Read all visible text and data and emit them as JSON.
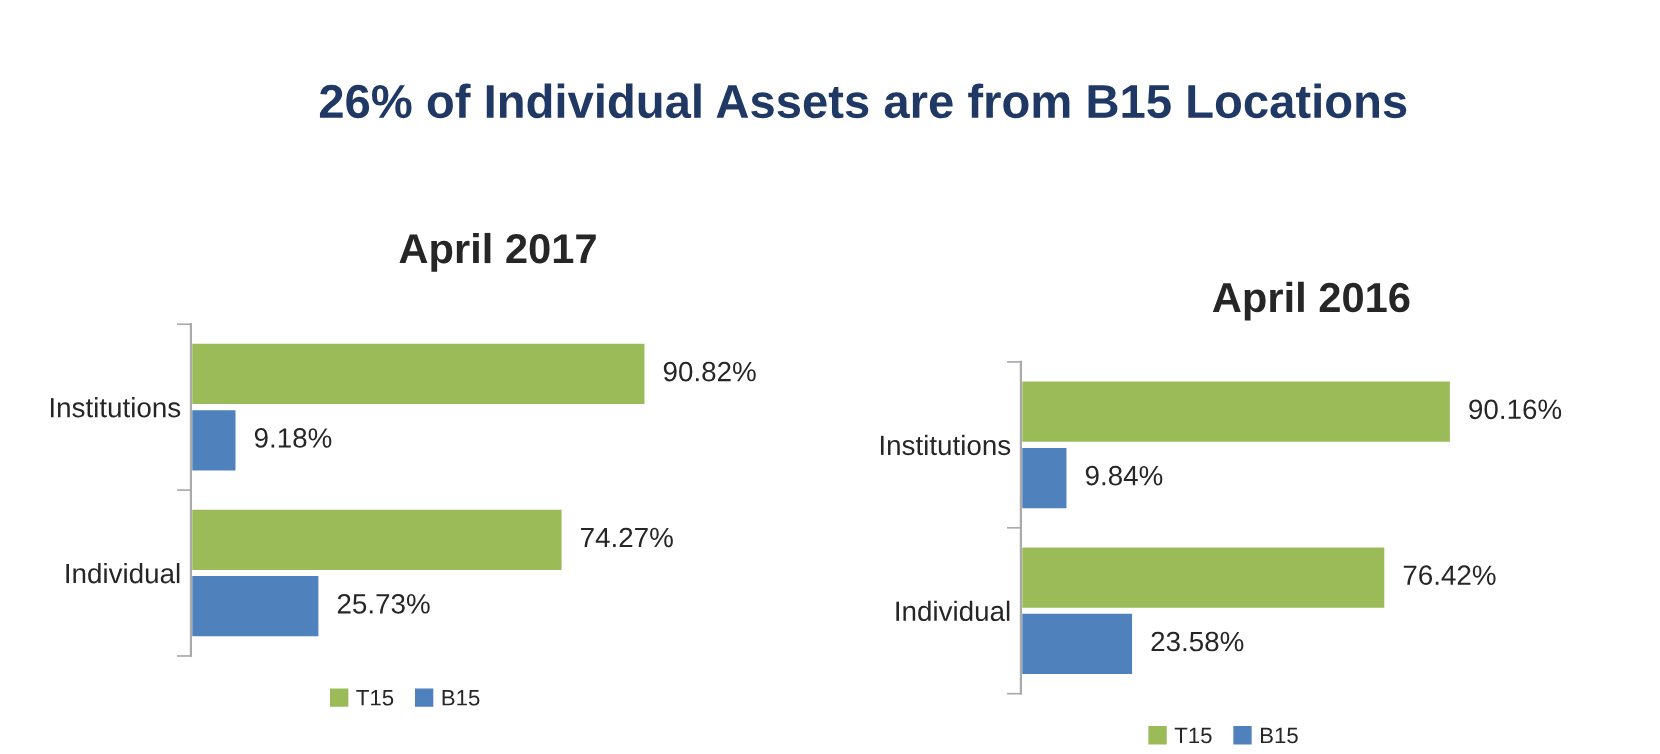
{
  "chart_data": [
    {
      "type": "bar",
      "orientation": "horizontal",
      "title": "April 2017",
      "annotations": [
        "26% of Individual Assets are from B15 Locations"
      ],
      "categories": [
        "Institutions",
        "Individual"
      ],
      "series": [
        {
          "name": "T15",
          "color": "#9bbb59",
          "values": [
            90.82,
            74.27
          ],
          "value_labels": [
            "90.82%",
            "74.27%"
          ]
        },
        {
          "name": "B15",
          "color": "#4f81bd",
          "values": [
            9.18,
            25.73
          ],
          "value_labels": [
            "9.18%",
            "25.73%"
          ]
        }
      ],
      "legend": "bottom"
    },
    {
      "type": "bar",
      "orientation": "horizontal",
      "title": "April 2016",
      "categories": [
        "Institutions",
        "Individual"
      ],
      "series": [
        {
          "name": "T15",
          "color": "#9bbb59",
          "values": [
            90.16,
            76.42
          ],
          "value_labels": [
            "90.16%",
            "76.42%"
          ]
        },
        {
          "name": "B15",
          "color": "#4f81bd",
          "values": [
            9.84,
            23.58
          ],
          "value_labels": [
            "9.84%",
            "23.58%"
          ]
        }
      ],
      "legend": "bottom"
    }
  ]
}
